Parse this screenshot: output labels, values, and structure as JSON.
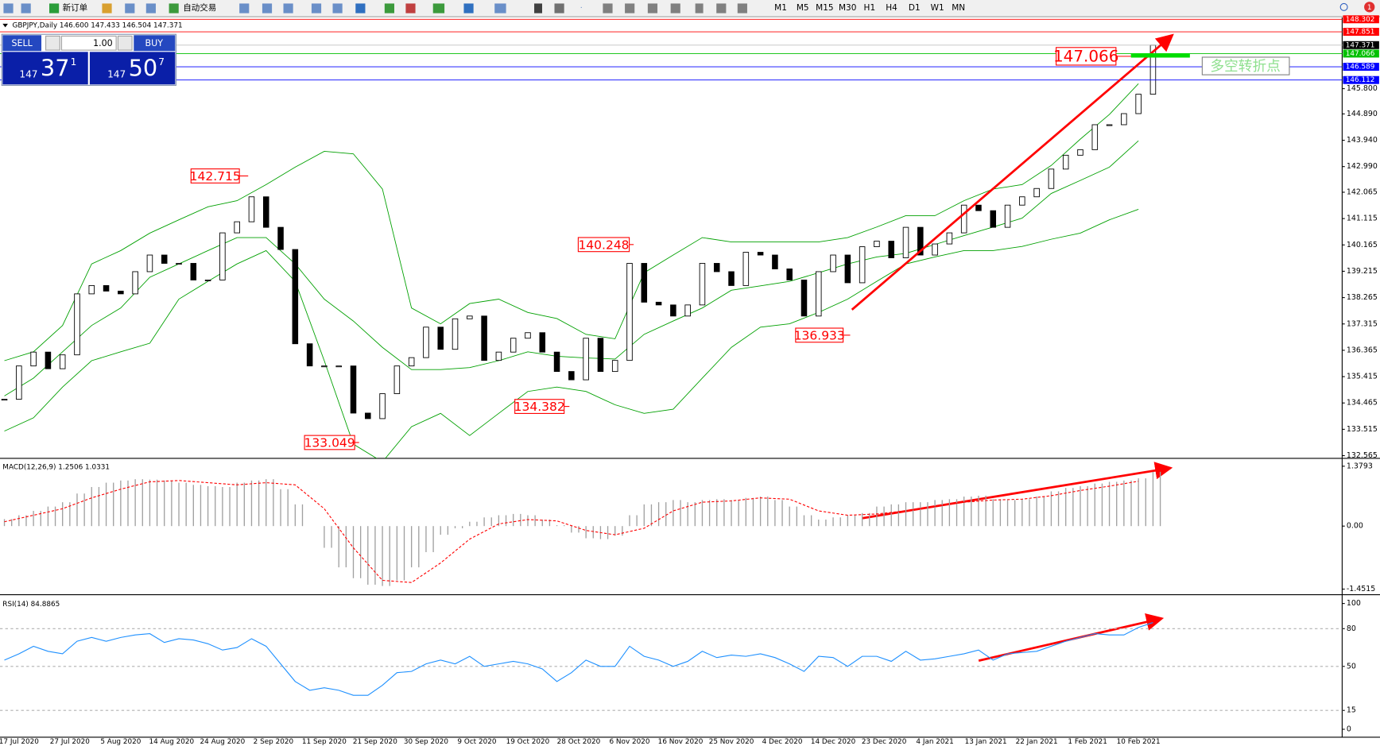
{
  "toolbar": {
    "new_order": "新订单",
    "auto_trading": "自动交易",
    "timeframes": [
      "M1",
      "M5",
      "M15",
      "M30",
      "H1",
      "H4",
      "D1",
      "W1",
      "MN"
    ],
    "notifications": 1
  },
  "trade_panel": {
    "sell": "SELL",
    "buy": "BUY",
    "lots": "1.00",
    "bid": {
      "big": 147,
      "pips": 37,
      "point": 1
    },
    "ask": {
      "big": 147,
      "pips": 50,
      "point": 7
    }
  },
  "chart": {
    "type": "candlestick",
    "header": "GBPJPY,Daily  146.600 147.433 146.504 147.371",
    "ylim": [
      132.5,
      148.3
    ],
    "yticks": [
      {
        "value": 145.8,
        "label": "145.800"
      },
      {
        "value": 144.89,
        "label": "144.890"
      },
      {
        "value": 143.94,
        "label": "143.940"
      },
      {
        "value": 142.99,
        "label": "142.990"
      },
      142.065,
      141.115,
      140.165,
      139.215,
      138.265,
      137.315,
      136.365,
      135.415,
      134.465,
      133.515,
      132.565
    ],
    "levels": [
      {
        "value": 148.302,
        "color": "#ff0000"
      },
      {
        "value": 147.851,
        "color": "#ff0000"
      },
      {
        "value": 147.371,
        "color": "#000000"
      },
      {
        "value": 147.066,
        "color": "#00c000"
      },
      {
        "value": 146.589,
        "color": "#0000ff"
      },
      {
        "value": 146.112,
        "color": "#0000ff"
      }
    ],
    "closes": [
      134.6,
      135.8,
      136.3,
      135.7,
      136.2,
      138.4,
      138.7,
      138.5,
      138.4,
      139.2,
      139.8,
      139.5,
      139.5,
      138.9,
      138.9,
      140.6,
      141.0,
      141.9,
      140.8,
      140.0,
      136.6,
      135.8,
      135.8,
      135.8,
      134.1,
      133.9,
      134.8,
      135.8,
      136.1,
      137.2,
      136.4,
      137.5,
      137.6,
      136.0,
      136.3,
      136.8,
      137.0,
      136.3,
      135.6,
      135.3,
      136.8,
      135.6,
      136.0,
      139.5,
      138.1,
      138.0,
      137.6,
      138.0,
      139.5,
      139.2,
      138.7,
      139.9,
      139.8,
      139.3,
      138.9,
      137.6,
      139.2,
      139.8,
      138.8,
      140.1,
      140.3,
      139.7,
      140.8,
      139.8,
      140.2,
      140.6,
      141.6,
      141.4,
      140.8,
      141.6,
      141.9,
      142.2,
      142.9,
      143.4,
      143.6,
      144.5,
      144.5,
      144.9,
      145.6,
      147.371
    ],
    "band_color": "#00a000",
    "bands": {
      "upper": [
        135.99,
        136.31,
        137.26,
        139.48,
        139.96,
        140.59,
        141.07,
        141.54,
        141.76,
        142.34,
        142.97,
        143.54,
        143.45,
        142.18,
        137.89,
        137.32,
        138.05,
        138.21,
        137.73,
        137.51,
        136.94,
        136.78,
        139.16,
        139.8,
        140.43,
        140.27,
        140.27,
        140.27,
        140.27,
        140.43,
        140.81,
        141.22,
        141.22,
        141.76,
        142.18,
        142.34,
        143.03,
        143.98,
        144.87,
        145.98
      ],
      "middle": [
        134.72,
        135.36,
        136.31,
        137.26,
        137.89,
        139.0,
        139.48,
        139.96,
        140.43,
        140.43,
        139.48,
        138.21,
        137.42,
        136.47,
        135.67,
        135.67,
        135.74,
        135.99,
        136.31,
        136.15,
        136.09,
        136.05,
        136.94,
        137.42,
        137.89,
        138.53,
        138.69,
        138.85,
        139.16,
        139.48,
        139.73,
        139.86,
        140.18,
        140.5,
        140.81,
        141.13,
        142.02,
        142.49,
        142.97,
        143.92
      ],
      "lower": [
        133.45,
        133.93,
        135.04,
        135.99,
        136.31,
        136.62,
        138.21,
        138.85,
        139.48,
        139.96,
        138.85,
        135.99,
        132.98,
        132.34,
        133.61,
        134.09,
        133.29,
        134.09,
        134.88,
        135.04,
        134.88,
        134.4,
        134.09,
        134.24,
        135.36,
        136.47,
        137.2,
        137.32,
        137.73,
        138.21,
        138.85,
        139.48,
        139.73,
        139.96,
        139.96,
        140.11,
        140.37,
        140.59,
        141.07,
        141.45
      ]
    },
    "annotations": [
      142.715,
      140.248,
      136.933,
      134.382,
      133.049,
      147.066
    ],
    "note": "多空转折点",
    "dates": [
      "17 Jul 2020",
      "27 Jul 2020",
      "5 Aug 2020",
      "14 Aug 2020",
      "24 Aug 2020",
      "2 Sep 2020",
      "11 Sep 2020",
      "21 Sep 2020",
      "30 Sep 2020",
      "9 Oct 2020",
      "19 Oct 2020",
      "28 Oct 2020",
      "6 Nov 2020",
      "16 Nov 2020",
      "25 Nov 2020",
      "4 Dec 2020",
      "14 Dec 2020",
      "23 Dec 2020",
      "4 Jan 2021",
      "13 Jan 2021",
      "22 Jan 2021",
      "1 Feb 2021",
      "10 Feb 2021"
    ]
  },
  "macd": {
    "header": "MACD(12,26,9) 1.2506 1.0331",
    "ylim": [
      -1.56,
      1.5
    ],
    "yticks": [
      1.3793,
      {
        "value": 0,
        "label": "0.00"
      },
      -1.4515
    ],
    "histogram": [
      0.16,
      0.25,
      0.35,
      0.45,
      0.55,
      0.75,
      0.9,
      1.0,
      1.05,
      1.08,
      1.07,
      1.05,
      1.0,
      0.95,
      0.92,
      0.9,
      1.0,
      1.05,
      1.08,
      0.85,
      0.5,
      0.0,
      -0.5,
      -0.95,
      -1.2,
      -1.35,
      -1.38,
      -1.25,
      -0.95,
      -0.6,
      -0.2,
      -0.05,
      0.1,
      0.2,
      0.25,
      0.28,
      0.25,
      0.15,
      0.02,
      -0.15,
      -0.28,
      -0.3,
      -0.22,
      0.25,
      0.5,
      0.55,
      0.6,
      0.55,
      0.6,
      0.62,
      0.6,
      0.65,
      0.68,
      0.6,
      0.45,
      0.25,
      0.15,
      0.2,
      0.25,
      0.3,
      0.45,
      0.5,
      0.55,
      0.55,
      0.6,
      0.62,
      0.68,
      0.7,
      0.62,
      0.6,
      0.62,
      0.68,
      0.8,
      0.88,
      0.92,
      0.98,
      1.02,
      1.05,
      1.1,
      1.2506
    ],
    "signal": [
      0.1,
      0.25,
      0.4,
      0.65,
      0.85,
      1.02,
      1.05,
      1.0,
      0.95,
      1.0,
      0.95,
      0.4,
      -0.5,
      -1.25,
      -1.3,
      -0.85,
      -0.3,
      0.05,
      0.15,
      0.12,
      -0.1,
      -0.2,
      -0.05,
      0.35,
      0.55,
      0.58,
      0.65,
      0.62,
      0.35,
      0.25,
      0.28,
      0.35,
      0.45,
      0.55,
      0.6,
      0.62,
      0.7,
      0.82,
      0.92,
      1.0331
    ],
    "hist_color": "#a0a0a0",
    "signal_color": "#ff0000"
  },
  "rsi": {
    "header": "RSI(14) 84.8865",
    "ylim": [
      -4.9,
      104.9
    ],
    "yticks": [
      100,
      80,
      50,
      15,
      0
    ],
    "color": "#1e90ff",
    "values": [
      55,
      60,
      66,
      62,
      60,
      70,
      73,
      70,
      73,
      75,
      76,
      69,
      72,
      71,
      68,
      63,
      65,
      72,
      66,
      52,
      38,
      31,
      33,
      31,
      27,
      27,
      35,
      45,
      46,
      52,
      55,
      52,
      58,
      50,
      52,
      54,
      52,
      48,
      38,
      45,
      55,
      50,
      50,
      66,
      58,
      55,
      50,
      54,
      62,
      57,
      59,
      58,
      60,
      57,
      52,
      46,
      58,
      57,
      50,
      58,
      58,
      54,
      62,
      55,
      56,
      58,
      60,
      63,
      55,
      60,
      61,
      62,
      66,
      70,
      73,
      76,
      75,
      75,
      81,
      84.8865
    ]
  }
}
